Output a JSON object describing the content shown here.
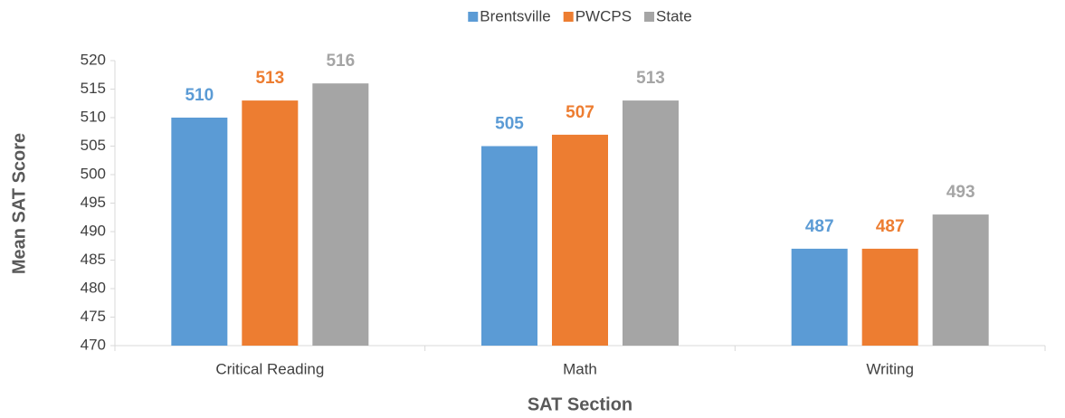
{
  "chart_data": {
    "type": "bar",
    "x_label": "SAT Section",
    "y_label": "Mean SAT Score",
    "categories": [
      "Critical Reading",
      "Math",
      "Writing"
    ],
    "series": [
      {
        "name": "Brentsville",
        "color": "#5b9bd5",
        "values": [
          510,
          505,
          487
        ]
      },
      {
        "name": "PWCPS",
        "color": "#ed7d31",
        "values": [
          513,
          507,
          487
        ]
      },
      {
        "name": "State",
        "color": "#a5a5a5",
        "values": [
          516,
          513,
          493
        ]
      }
    ],
    "ylim": [
      470,
      520
    ],
    "yticks": [
      470,
      475,
      480,
      485,
      490,
      495,
      500,
      505,
      510,
      515,
      520
    ],
    "grid": false,
    "legend": "top"
  }
}
